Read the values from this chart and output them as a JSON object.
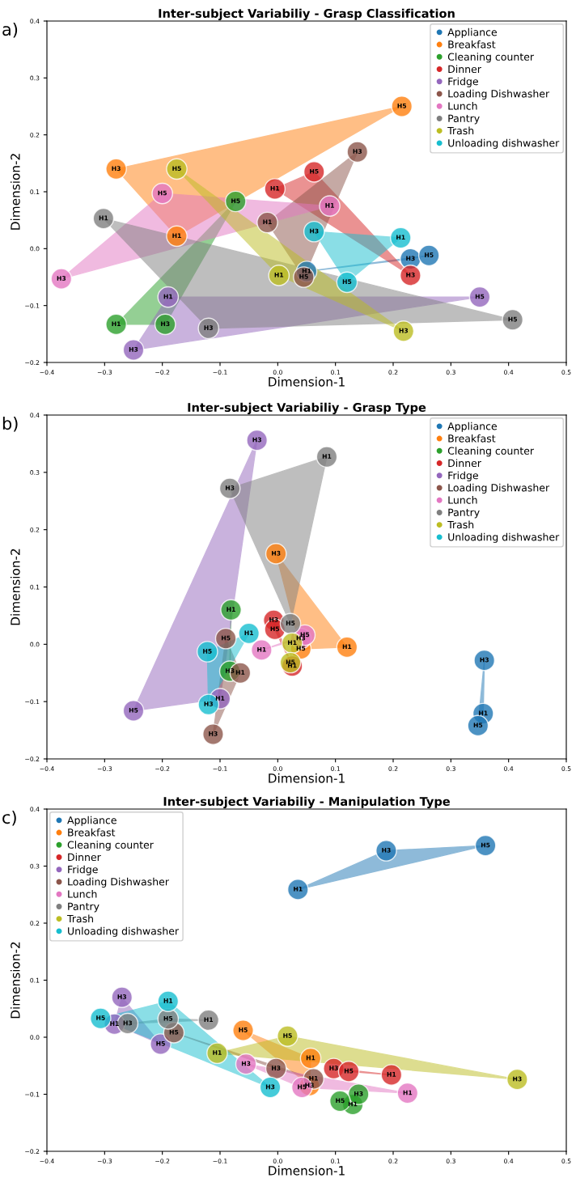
{
  "chart_data": [
    {
      "type": "scatter",
      "title": "Inter-subject Variabiliy - Grasp Classification",
      "xlabel": "Dimension-1",
      "ylabel": "Dimension-2",
      "annotations": [
        "a)"
      ],
      "legend": "top right",
      "marker": "circle",
      "xlim": [
        -0.4,
        0.5
      ],
      "ylim": [
        -0.2,
        0.4
      ],
      "xticks": [
        {
          "value": -0.4,
          "label": "−0.4"
        },
        {
          "value": -0.3,
          "label": "−0.3"
        },
        {
          "value": -0.2,
          "label": "−0.2"
        },
        {
          "value": -0.1,
          "label": "−0.1"
        },
        {
          "value": 0,
          "label": "0.0"
        },
        {
          "value": 0.1,
          "label": "0.1"
        },
        {
          "value": 0.2,
          "label": "0.2"
        },
        {
          "value": 0.3,
          "label": "0.3"
        },
        {
          "value": 0.4,
          "label": "0.4"
        },
        {
          "value": 0.5,
          "label": "0.5"
        }
      ],
      "yticks": [
        {
          "value": -0.2,
          "label": "−0.2"
        },
        {
          "value": -0.1,
          "label": "−0.1"
        },
        {
          "value": 0,
          "label": "0.0"
        },
        {
          "value": 0.1,
          "label": "0.1"
        },
        {
          "value": 0.2,
          "label": "0.2"
        },
        {
          "value": 0.3,
          "label": "0.3"
        },
        {
          "value": 0.4,
          "label": "0.4"
        }
      ],
      "series": [
        {
          "name": "Appliance",
          "color": "#1f77b4",
          "x": [
            0.05,
            0.23,
            0.262
          ],
          "values": [
            -0.04,
            -0.018,
            -0.012
          ],
          "value_labels": [
            "H1",
            "H3",
            "H5"
          ]
        },
        {
          "name": "Breakfast",
          "color": "#ff7f0e",
          "x": [
            -0.175,
            -0.28,
            0.215
          ],
          "values": [
            0.022,
            0.14,
            0.25
          ],
          "value_labels": [
            "H1",
            "H3",
            "H5"
          ]
        },
        {
          "name": "Cleaning counter",
          "color": "#2ca02c",
          "x": [
            -0.28,
            -0.195,
            -0.073
          ],
          "values": [
            -0.133,
            -0.133,
            0.083
          ],
          "value_labels": [
            "H1",
            "H3",
            "H5"
          ]
        },
        {
          "name": "Dinner",
          "color": "#d62728",
          "x": [
            -0.005,
            0.23,
            0.063
          ],
          "values": [
            0.105,
            -0.047,
            0.135
          ],
          "value_labels": [
            "H1",
            "H3",
            "H5"
          ]
        },
        {
          "name": "Fridge",
          "color": "#9467bd",
          "x": [
            -0.19,
            -0.25,
            0.35
          ],
          "values": [
            -0.085,
            -0.178,
            -0.085
          ],
          "value_labels": [
            "H1",
            "H3",
            "H5"
          ]
        },
        {
          "name": "Loading Dishwasher",
          "color": "#8c564b",
          "x": [
            -0.018,
            0.138,
            0.045
          ],
          "values": [
            0.046,
            0.17,
            -0.05
          ],
          "value_labels": [
            "H1",
            "H3",
            "H5"
          ]
        },
        {
          "name": "Lunch",
          "color": "#e377c2",
          "x": [
            0.09,
            -0.375,
            -0.2
          ],
          "values": [
            0.075,
            -0.053,
            0.097
          ],
          "value_labels": [
            "H1",
            "H3",
            "H5"
          ]
        },
        {
          "name": "Pantry",
          "color": "#7f7f7f",
          "x": [
            -0.302,
            -0.12,
            0.407
          ],
          "values": [
            0.053,
            -0.14,
            -0.125
          ],
          "value_labels": [
            "H1",
            "H3",
            "H5"
          ]
        },
        {
          "name": "Trash",
          "color": "#bcbd22",
          "x": [
            0.002,
            0.218,
            -0.175
          ],
          "values": [
            -0.047,
            -0.145,
            0.14
          ],
          "value_labels": [
            "H1",
            "H3",
            "H5"
          ]
        },
        {
          "name": "Unloading dishwasher",
          "color": "#17becf",
          "x": [
            0.213,
            0.063,
            0.12
          ],
          "values": [
            0.019,
            0.03,
            -0.059
          ],
          "value_labels": [
            "H1",
            "H3",
            "H5"
          ]
        }
      ]
    },
    {
      "type": "scatter",
      "title": "Inter-subject Variabiliy - Grasp Type",
      "xlabel": "Dimension-1",
      "ylabel": "Dimension-2",
      "annotations": [
        "b)"
      ],
      "legend": "top right",
      "marker": "circle",
      "xlim": [
        -0.4,
        0.5
      ],
      "ylim": [
        -0.2,
        0.4
      ],
      "xticks": [
        {
          "value": -0.4,
          "label": "−0.4"
        },
        {
          "value": -0.3,
          "label": "−0.3"
        },
        {
          "value": -0.2,
          "label": "−0.2"
        },
        {
          "value": -0.1,
          "label": "−0.1"
        },
        {
          "value": 0,
          "label": "0.0"
        },
        {
          "value": 0.1,
          "label": "0.1"
        },
        {
          "value": 0.2,
          "label": "0.2"
        },
        {
          "value": 0.3,
          "label": "0.3"
        },
        {
          "value": 0.4,
          "label": "0.4"
        },
        {
          "value": 0.5,
          "label": "0.5"
        }
      ],
      "yticks": [
        {
          "value": -0.2,
          "label": "−0.2"
        },
        {
          "value": -0.1,
          "label": "−0.1"
        },
        {
          "value": 0,
          "label": "0.0"
        },
        {
          "value": 0.1,
          "label": "0.1"
        },
        {
          "value": 0.2,
          "label": "0.2"
        },
        {
          "value": 0.3,
          "label": "0.3"
        },
        {
          "value": 0.4,
          "label": "0.4"
        }
      ],
      "series": [
        {
          "name": "Appliance",
          "color": "#1f77b4",
          "x": [
            0.356,
            0.358,
            0.347
          ],
          "values": [
            -0.121,
            -0.028,
            -0.142
          ],
          "value_labels": [
            "H1",
            "H3",
            "H5"
          ]
        },
        {
          "name": "Breakfast",
          "color": "#ff7f0e",
          "x": [
            0.12,
            -0.003,
            0.04
          ],
          "values": [
            -0.005,
            0.158,
            -0.008
          ],
          "value_labels": [
            "H1",
            "H3",
            "H5"
          ]
        },
        {
          "name": "Cleaning counter",
          "color": "#2ca02c",
          "x": [
            -0.081,
            -0.083,
            null
          ],
          "values": [
            0.06,
            -0.047,
            null
          ],
          "value_labels": [
            "H1",
            "H3",
            null
          ]
        },
        {
          "name": "Dinner",
          "color": "#d62728",
          "x": [
            0.025,
            -0.007,
            -0.005
          ],
          "values": [
            -0.038,
            0.042,
            0.026
          ],
          "value_labels": [
            "H1",
            "H3",
            "H5"
          ]
        },
        {
          "name": "Fridge",
          "color": "#9467bd",
          "x": [
            -0.1,
            -0.036,
            -0.25
          ],
          "values": [
            -0.095,
            0.356,
            -0.116
          ],
          "value_labels": [
            "H1",
            "H3",
            "H5"
          ]
        },
        {
          "name": "Loading Dishwasher",
          "color": "#8c564b",
          "x": [
            -0.065,
            -0.112,
            -0.09
          ],
          "values": [
            -0.05,
            -0.157,
            0.01
          ],
          "value_labels": [
            "H1",
            "H3",
            "H5"
          ]
        },
        {
          "name": "Lunch",
          "color": "#e377c2",
          "x": [
            -0.028,
            0.04,
            0.047
          ],
          "values": [
            -0.01,
            0.01,
            0.016
          ],
          "value_labels": [
            "H1",
            "H3",
            "H5"
          ]
        },
        {
          "name": "Pantry",
          "color": "#7f7f7f",
          "x": [
            0.085,
            -0.083,
            0.022
          ],
          "values": [
            0.327,
            0.272,
            0.036
          ],
          "value_labels": [
            "H1",
            "H3",
            "H5"
          ]
        },
        {
          "name": "Trash",
          "color": "#bcbd22",
          "x": [
            0.025,
            null,
            0.022
          ],
          "values": [
            0.002,
            null,
            -0.032
          ],
          "value_labels": [
            "H1",
            null,
            "H5"
          ]
        },
        {
          "name": "Unloading dishwasher",
          "color": "#17becf",
          "x": [
            -0.05,
            -0.12,
            -0.122
          ],
          "values": [
            0.019,
            -0.105,
            -0.013
          ],
          "value_labels": [
            "H1",
            "H3",
            "H5"
          ]
        }
      ]
    },
    {
      "type": "scatter",
      "title": "Inter-subject Variabiliy - Manipulation Type",
      "xlabel": "Dimension-1",
      "ylabel": "Dimension-2",
      "annotations": [
        "c)"
      ],
      "legend": "top left",
      "marker": "circle",
      "xlim": [
        -0.4,
        0.5
      ],
      "ylim": [
        -0.2,
        0.4
      ],
      "xticks": [
        {
          "value": -0.4,
          "label": "−0.4"
        },
        {
          "value": -0.3,
          "label": "−0.3"
        },
        {
          "value": -0.2,
          "label": "−0.2"
        },
        {
          "value": -0.1,
          "label": "−0.1"
        },
        {
          "value": 0,
          "label": "0.0"
        },
        {
          "value": 0.1,
          "label": "0.1"
        },
        {
          "value": 0.2,
          "label": "0.2"
        },
        {
          "value": 0.3,
          "label": "0.3"
        },
        {
          "value": 0.4,
          "label": "0.4"
        },
        {
          "value": 0.5,
          "label": "0.5"
        }
      ],
      "yticks": [
        {
          "value": -0.2,
          "label": "−0.2"
        },
        {
          "value": -0.1,
          "label": "−0.1"
        },
        {
          "value": 0,
          "label": "0.0"
        },
        {
          "value": 0.1,
          "label": "0.1"
        },
        {
          "value": 0.2,
          "label": "0.2"
        },
        {
          "value": 0.3,
          "label": "0.3"
        },
        {
          "value": 0.4,
          "label": "0.4"
        }
      ],
      "series": [
        {
          "name": "Appliance",
          "color": "#1f77b4",
          "x": [
            0.035,
            0.188,
            0.36
          ],
          "values": [
            0.259,
            0.327,
            0.336
          ],
          "value_labels": [
            "H1",
            "H3",
            "H5"
          ]
        },
        {
          "name": "Breakfast",
          "color": "#ff7f0e",
          "x": [
            0.057,
            0.055,
            -0.06
          ],
          "values": [
            -0.037,
            -0.085,
            0.012
          ],
          "value_labels": [
            "H1",
            "H3",
            "H5"
          ]
        },
        {
          "name": "Cleaning counter",
          "color": "#2ca02c",
          "x": [
            0.13,
            0.14,
            0.108
          ],
          "values": [
            -0.118,
            -0.1,
            -0.112
          ],
          "value_labels": [
            "H1",
            "H3",
            "H5"
          ]
        },
        {
          "name": "Dinner",
          "color": "#d62728",
          "x": [
            0.197,
            0.097,
            0.123
          ],
          "values": [
            -0.066,
            -0.055,
            -0.06
          ],
          "value_labels": [
            "H1",
            "H3",
            "H5"
          ]
        },
        {
          "name": "Fridge",
          "color": "#9467bd",
          "x": [
            -0.283,
            -0.27,
            -0.203
          ],
          "values": [
            0.023,
            0.07,
            -0.012
          ],
          "value_labels": [
            "H1",
            "H3",
            "H5"
          ]
        },
        {
          "name": "Loading Dishwasher",
          "color": "#8c564b",
          "x": [
            0.062,
            -0.003,
            -0.18
          ],
          "values": [
            -0.073,
            -0.055,
            0.008
          ],
          "value_labels": [
            "H1",
            "H3",
            "H5"
          ]
        },
        {
          "name": "Lunch",
          "color": "#e377c2",
          "x": [
            0.225,
            -0.055,
            0.042
          ],
          "values": [
            -0.098,
            -0.047,
            -0.088
          ],
          "value_labels": [
            "H1",
            "H3",
            "H5"
          ]
        },
        {
          "name": "Pantry",
          "color": "#7f7f7f",
          "x": [
            -0.12,
            -0.26,
            -0.19
          ],
          "values": [
            0.03,
            0.024,
            0.032
          ],
          "value_labels": [
            "H1",
            "H3",
            "H5"
          ]
        },
        {
          "name": "Trash",
          "color": "#bcbd22",
          "x": [
            -0.105,
            0.415,
            0.017
          ],
          "values": [
            -0.028,
            -0.074,
            0.002
          ],
          "value_labels": [
            "H1",
            "H3",
            "H5"
          ]
        },
        {
          "name": "Unloading dishwasher",
          "color": "#17becf",
          "x": [
            -0.19,
            -0.013,
            -0.307
          ],
          "values": [
            0.063,
            -0.088,
            0.033
          ],
          "value_labels": [
            "H1",
            "H3",
            "H5"
          ]
        }
      ]
    }
  ]
}
